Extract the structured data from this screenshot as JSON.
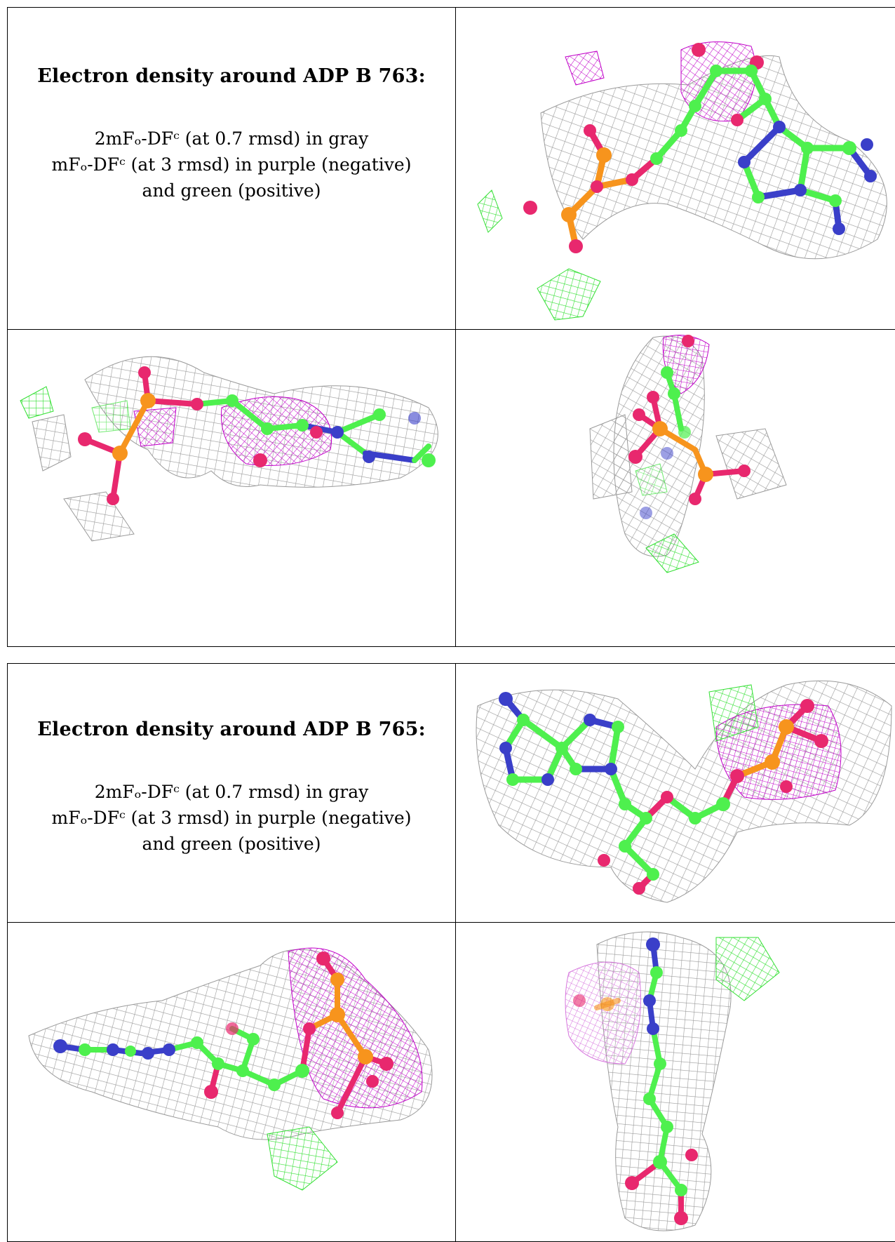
{
  "panels": [
    {
      "title": "Electron density around ADP B 763:",
      "legend": {
        "line1": "2mFₒ-DFᶜ (at 0.7 rmsd) in gray",
        "line2": "mFₒ-DFᶜ (at 3 rmsd) in purple (negative)",
        "line3": "and green (positive)"
      }
    },
    {
      "title": "Electron density around ADP B 765:",
      "legend": {
        "line1": "2mFₒ-DFᶜ (at 0.7 rmsd) in gray",
        "line2": "mFₒ-DFᶜ (at 3 rmsd) in purple (negative)",
        "line3": "and green (positive)"
      }
    }
  ],
  "colors": {
    "carbon": "#4ef04e",
    "oxygen": "#e8286e",
    "phosphorus": "#f7941d",
    "nitrogen": "#3a3fc9",
    "mesh_gray": "#9a9a9a",
    "mesh_purple": "#c000c8",
    "mesh_green": "#33e033"
  }
}
